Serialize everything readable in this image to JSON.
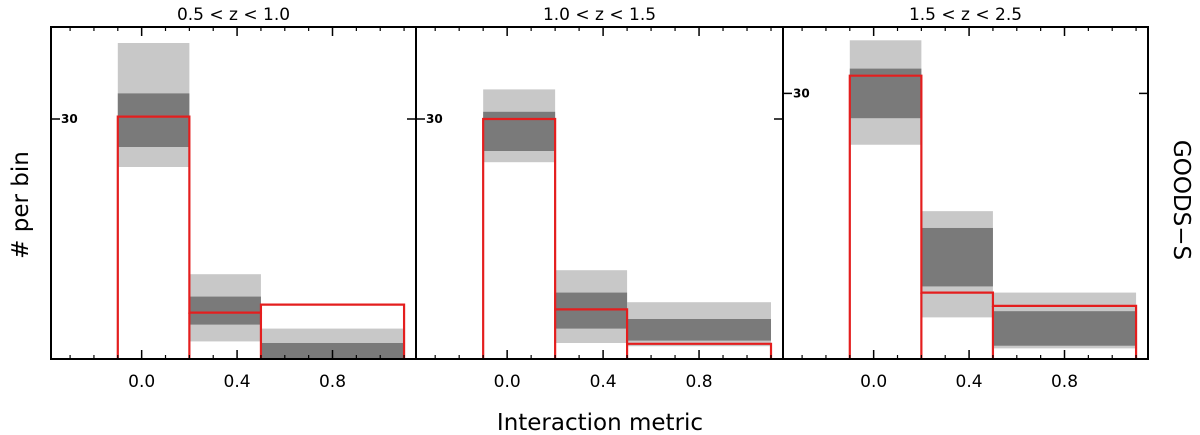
{
  "figure": {
    "xlabel": "Interaction metric",
    "ylabel": "# per bin",
    "right_label": "GOODS−S"
  },
  "chart_data": [
    {
      "type": "bar",
      "title": "0.5 < z < 1.0",
      "xlabel": "Interaction metric",
      "ylabel": "# per bin",
      "xlim": [
        -0.38,
        1.15
      ],
      "ylim": [
        0,
        41.5
      ],
      "xticks": [
        "0.0",
        "0.4",
        "0.8"
      ],
      "yticks": [
        "30"
      ],
      "bin_edges": [
        -0.1,
        0.2,
        0.5,
        1.1
      ],
      "model_median_range": [
        [
          26.5,
          33.2
        ],
        [
          4.3,
          7.8
        ],
        [
          0,
          2.0
        ]
      ],
      "model_outer_range": [
        [
          24.0,
          39.5
        ],
        [
          2.2,
          10.6
        ],
        [
          0,
          3.8
        ]
      ],
      "observed": [
        30.3,
        5.8,
        6.8
      ],
      "grid": false,
      "legend": "none"
    },
    {
      "type": "bar",
      "title": "1.0 < z < 1.5",
      "xlabel": "Interaction metric",
      "ylabel": "# per bin",
      "xlim": [
        -0.38,
        1.15
      ],
      "ylim": [
        0,
        41.5
      ],
      "xticks": [
        "0.0",
        "0.4",
        "0.8"
      ],
      "yticks": [
        "30"
      ],
      "bin_edges": [
        -0.1,
        0.2,
        0.5,
        1.1
      ],
      "model_median_range": [
        [
          26.0,
          30.9
        ],
        [
          3.8,
          8.3
        ],
        [
          2.3,
          5.0
        ]
      ],
      "model_outer_range": [
        [
          24.6,
          33.7
        ],
        [
          2.0,
          11.1
        ],
        [
          1.6,
          7.1
        ]
      ],
      "observed": [
        30.0,
        6.2,
        1.9
      ],
      "grid": false,
      "legend": "none"
    },
    {
      "type": "bar",
      "title": "1.5 < z < 2.5",
      "xlabel": "Interaction metric",
      "ylabel": "# per bin",
      "xlim": [
        -0.38,
        1.15
      ],
      "ylim": [
        0,
        37.5
      ],
      "xticks": [
        "0.0",
        "0.4",
        "0.8"
      ],
      "yticks": [
        "30"
      ],
      "bin_edges": [
        -0.1,
        0.2,
        0.5,
        1.1
      ],
      "model_median_range": [
        [
          27.2,
          32.8
        ],
        [
          8.2,
          14.8
        ],
        [
          1.5,
          5.4
        ]
      ],
      "model_outer_range": [
        [
          24.2,
          36.0
        ],
        [
          4.7,
          16.7
        ],
        [
          1.2,
          7.5
        ]
      ],
      "observed": [
        32.0,
        7.5,
        6.0
      ],
      "grid": false,
      "legend": "none"
    }
  ],
  "colors": {
    "outer_band": "#c8c8c8",
    "inner_band": "#7a7a7a",
    "observed": "#e41e1e",
    "axes": "#000000"
  }
}
